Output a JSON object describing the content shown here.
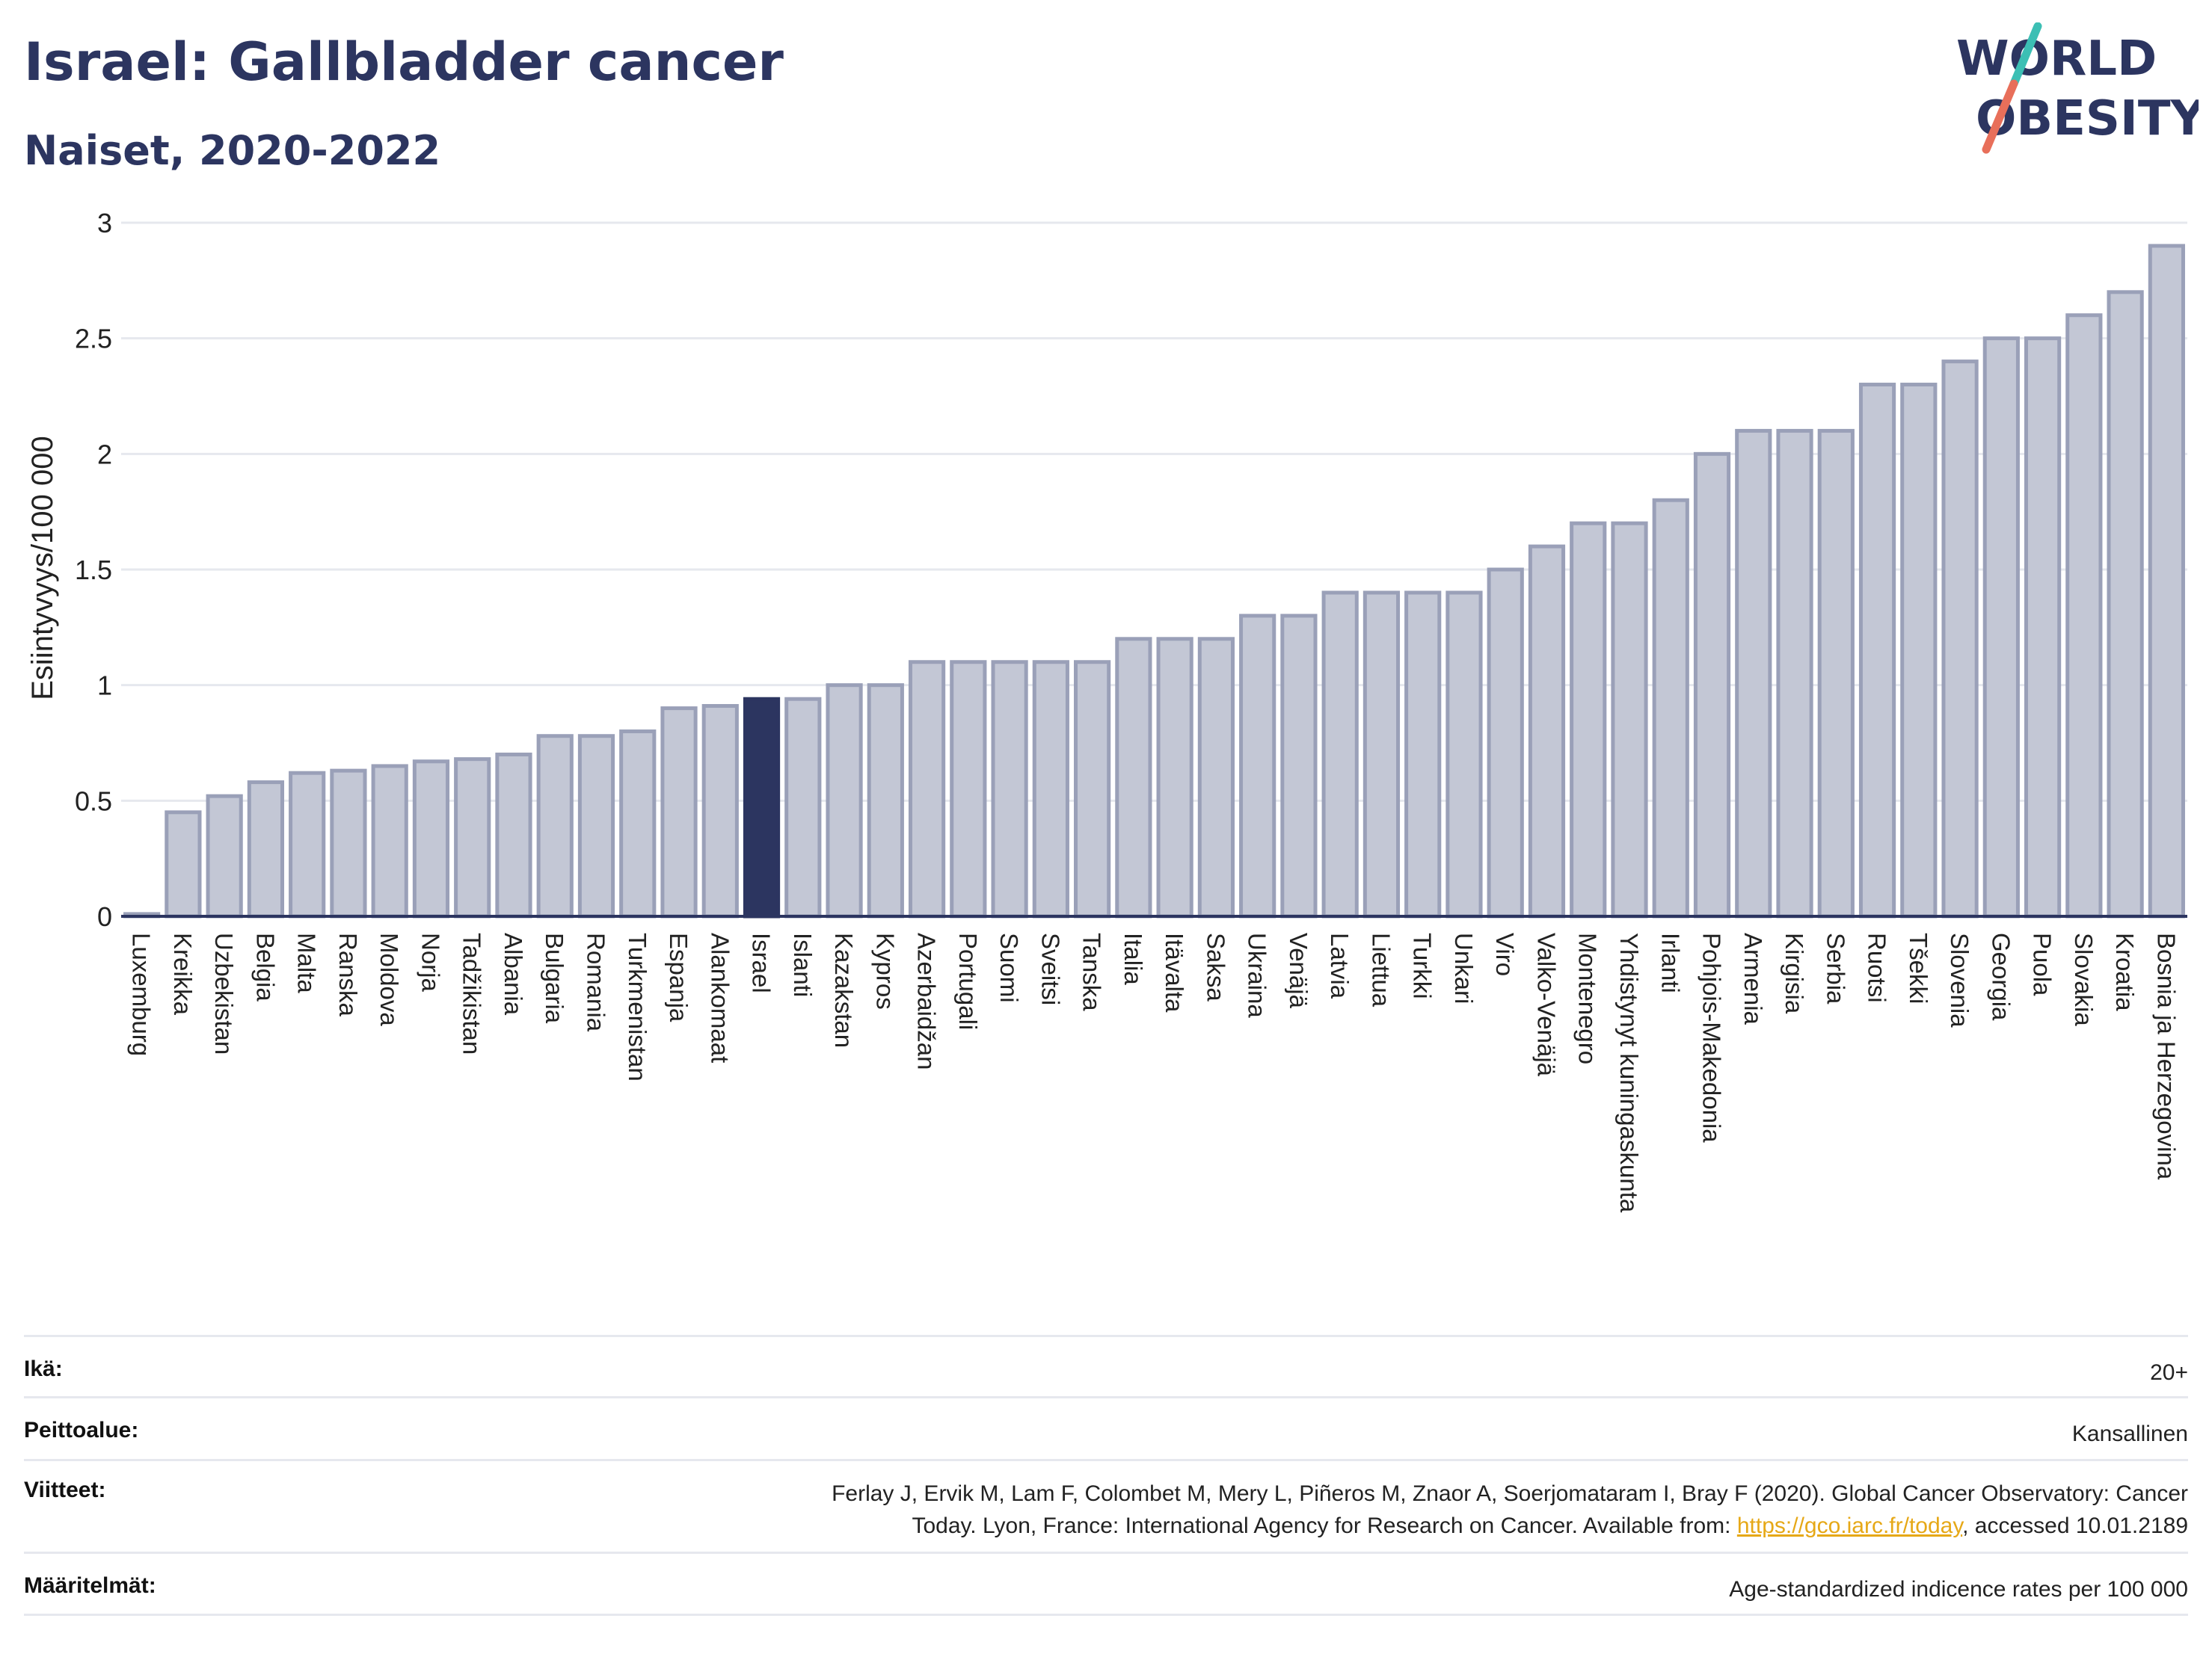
{
  "header": {
    "title": "Israel: Gallbladder cancer",
    "subtitle": "Naiset, 2020-2022"
  },
  "logo": {
    "line1": "WORLD",
    "line2": "OBESITY",
    "colors": {
      "text": "#2c3560",
      "slash_teal": "#3cbfb4",
      "slash_coral": "#e86f5a"
    }
  },
  "colors": {
    "bar_fill": "#c3c7d5",
    "bar_stroke": "#9aa0b8",
    "highlight": "#2c3560",
    "grid": "#e6e8ee",
    "axis": "#2c3560"
  },
  "chart_data": {
    "type": "bar",
    "ylabel": "Esiintyvyys/100 000",
    "ylim": [
      0,
      3
    ],
    "yticks": [
      {
        "v": 0,
        "label": "0"
      },
      {
        "v": 0.5,
        "label": "0.5"
      },
      {
        "v": 1,
        "label": "1"
      },
      {
        "v": 1.5,
        "label": "1.5"
      },
      {
        "v": 2,
        "label": "2"
      },
      {
        "v": 2.5,
        "label": "2.5"
      },
      {
        "v": 3,
        "label": "3"
      }
    ],
    "grid": true,
    "highlight": "Israel",
    "categories": [
      "Luxemburg",
      "Kreikka",
      "Uzbekistan",
      "Belgia",
      "Malta",
      "Ranska",
      "Moldova",
      "Norja",
      "Tadžikistan",
      "Albania",
      "Bulgaria",
      "Romania",
      "Turkmenistan",
      "Espanja",
      "Alankomaat",
      "Israel",
      "Islanti",
      "Kazakstan",
      "Kypros",
      "Azerbaidžan",
      "Portugali",
      "Suomi",
      "Sveitsi",
      "Tanska",
      "Italia",
      "Itävalta",
      "Saksa",
      "Ukraina",
      "Venäjä",
      "Latvia",
      "Liettua",
      "Turkki",
      "Unkari",
      "Viro",
      "Valko-Venäjä",
      "Montenegro",
      "Yhdistynyt kuningaskunta",
      "Irlanti",
      "Pohjois-Makedonia",
      "Armenia",
      "Kirgisia",
      "Serbia",
      "Ruotsi",
      "Tšekki",
      "Slovenia",
      "Georgia",
      "Puola",
      "Slovakia",
      "Kroatia",
      "Bosnia ja Herzegovina"
    ],
    "values": [
      0.01,
      0.45,
      0.52,
      0.58,
      0.62,
      0.63,
      0.65,
      0.67,
      0.68,
      0.7,
      0.78,
      0.78,
      0.8,
      0.9,
      0.91,
      0.94,
      0.94,
      1.0,
      1.0,
      1.1,
      1.1,
      1.1,
      1.1,
      1.1,
      1.2,
      1.2,
      1.2,
      1.3,
      1.3,
      1.4,
      1.4,
      1.4,
      1.4,
      1.5,
      1.6,
      1.7,
      1.7,
      1.8,
      2.0,
      2.1,
      2.1,
      2.1,
      2.3,
      2.3,
      2.4,
      2.5,
      2.5,
      2.6,
      2.7,
      2.9
    ]
  },
  "meta": {
    "age_label": "Ikä:",
    "age_value": "20+",
    "coverage_label": "Peittoalue:",
    "coverage_value": "Kansallinen",
    "references_label": "Viitteet:",
    "references_line1": "Ferlay J, Ervik M, Lam F, Colombet M, Mery L, Piñeros M, Znaor A, Soerjomataram I, Bray F (2020). Global Cancer Observatory: Cancer",
    "references_line2_pre": "Today. Lyon, France: International Agency for Research on Cancer. Available from: ",
    "references_link": "https://gco.iarc.fr/today",
    "references_line2_post": ", accessed 10.01.2189",
    "definitions_label": "Määritelmät:",
    "definitions_value": "Age-standardized indicence rates per 100 000"
  }
}
